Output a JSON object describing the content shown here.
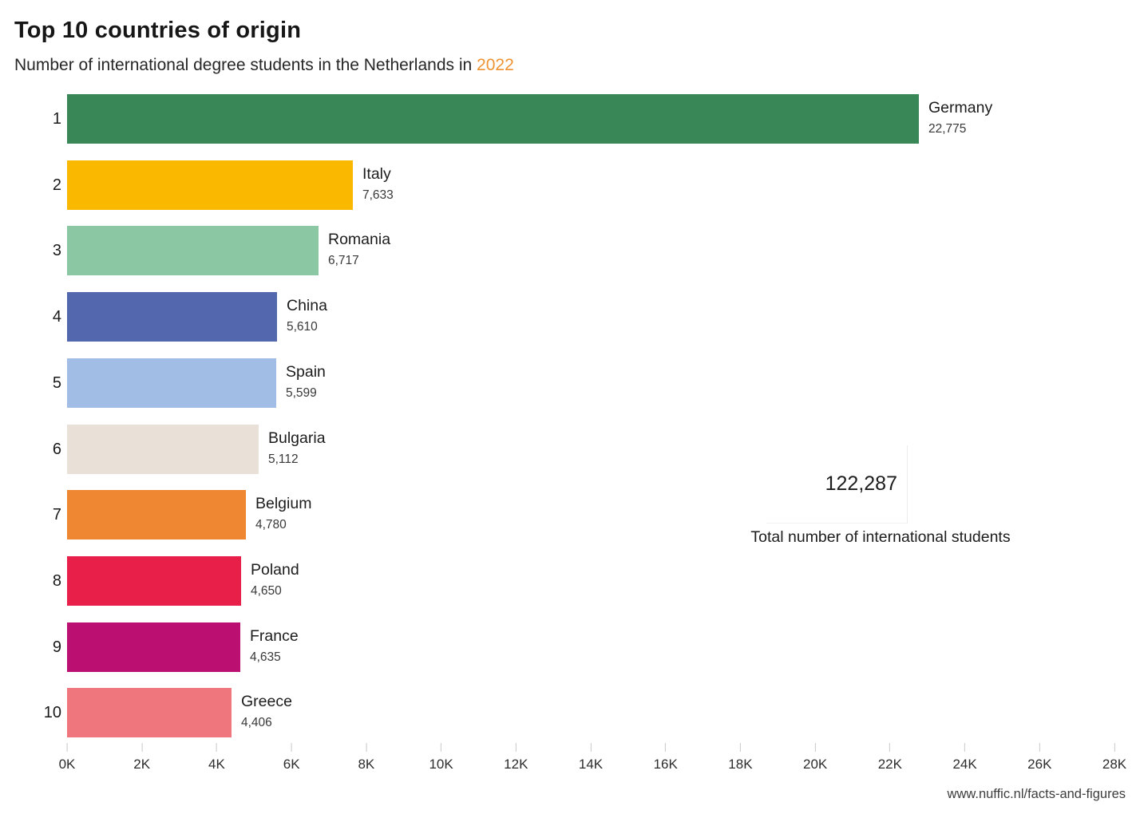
{
  "header": {
    "title": "Top 10 countries of origin",
    "subtitle_prefix": "Number of international degree students in the Netherlands in ",
    "subtitle_year": "2022",
    "year_color": "#ee9331"
  },
  "chart_data": {
    "type": "bar",
    "orientation": "horizontal",
    "title": "Top 10 countries of origin",
    "subtitle": "Number of international degree students in the Netherlands in 2022",
    "categories": [
      "Germany",
      "Italy",
      "Romania",
      "China",
      "Spain",
      "Bulgaria",
      "Belgium",
      "Poland",
      "France",
      "Greece"
    ],
    "ranks": [
      "1",
      "2",
      "3",
      "4",
      "5",
      "6",
      "7",
      "8",
      "9",
      "10"
    ],
    "values": [
      22775,
      7633,
      6717,
      5610,
      5599,
      5112,
      4780,
      4650,
      4635,
      4406
    ],
    "value_labels": [
      "22,775",
      "7,633",
      "6,717",
      "5,610",
      "5,599",
      "5,112",
      "4,780",
      "4,650",
      "4,635",
      "4,406"
    ],
    "bar_colors": [
      "#398656",
      "#fab900",
      "#8ac7a2",
      "#5267ad",
      "#a2bde5",
      "#e9e1d7",
      "#ef8732",
      "#e82049",
      "#bb1072",
      "#f0767e"
    ],
    "x_ticks": [
      "0K",
      "2K",
      "4K",
      "6K",
      "8K",
      "10K",
      "12K",
      "14K",
      "16K",
      "18K",
      "20K",
      "22K",
      "24K",
      "26K",
      "28K"
    ],
    "x_tick_values": [
      0,
      2000,
      4000,
      6000,
      8000,
      10000,
      12000,
      14000,
      16000,
      18000,
      20000,
      22000,
      24000,
      26000,
      28000
    ],
    "xlim": [
      0,
      28000
    ],
    "grid": false,
    "legend": false
  },
  "annotation": {
    "total_value": "122,287",
    "total_label": "Total number of international students"
  },
  "footer": {
    "link": "www.nuffic.nl/facts-and-figures"
  }
}
